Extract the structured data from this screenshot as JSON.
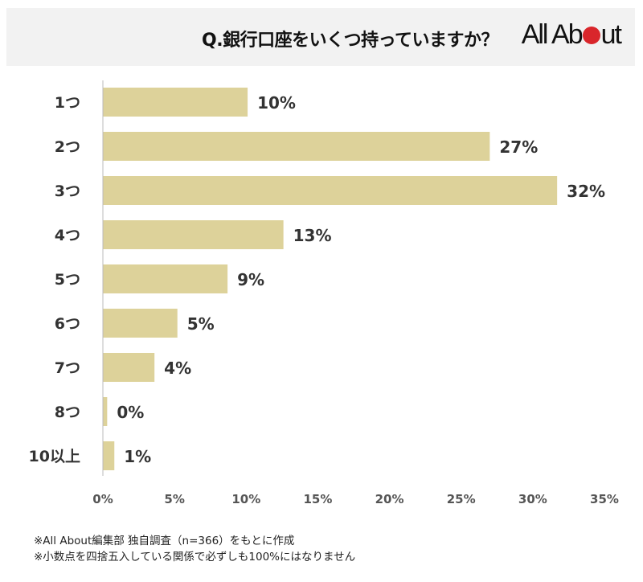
{
  "header": {
    "title": "Q.銀行口座をいくつ持っていますか？",
    "logo": "All About"
  },
  "chart_data": {
    "type": "bar",
    "orientation": "horizontal",
    "title": "Q.銀行口座をいくつ持っていますか？",
    "categories": [
      "1つ",
      "2つ",
      "3つ",
      "4つ",
      "5つ",
      "6つ",
      "7つ",
      "8つ",
      "10以上"
    ],
    "values": [
      10.1,
      27.0,
      31.7,
      12.6,
      8.7,
      5.2,
      3.6,
      0.3,
      0.8
    ],
    "data_labels": [
      "10%",
      "27%",
      "32%",
      "13%",
      "9%",
      "5%",
      "4%",
      "0%",
      "1%"
    ],
    "xlim": [
      0,
      35
    ],
    "x_ticks": [
      "0%",
      "5%",
      "10%",
      "15%",
      "20%",
      "25%",
      "30%",
      "35%"
    ],
    "grid": false,
    "bar_color": "#ddd29a"
  },
  "notes": [
    "※All About編集部 独自調査（n=366）をもとに作成",
    "※小数点を四捨五入している関係で必ずしも100%にはなりません"
  ]
}
